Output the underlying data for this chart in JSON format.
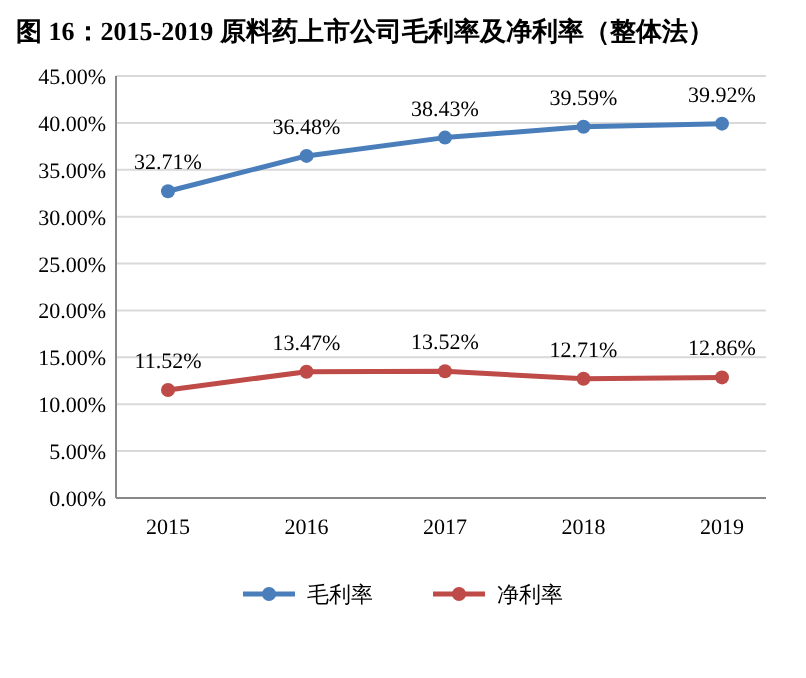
{
  "chart_data": {
    "type": "line",
    "title": "图 16：2015-2019 原料药上市公司毛利率及净利率（整体法）",
    "categories": [
      "2015",
      "2016",
      "2017",
      "2018",
      "2019"
    ],
    "series": [
      {
        "name": "毛利率",
        "color": "#4a7ebb",
        "values": [
          32.71,
          36.48,
          38.43,
          39.59,
          39.92
        ],
        "value_labels": [
          "32.71%",
          "36.48%",
          "38.43%",
          "39.59%",
          "39.92%"
        ]
      },
      {
        "name": "净利率",
        "color": "#be4b48",
        "values": [
          11.52,
          13.47,
          13.52,
          12.71,
          12.86
        ],
        "value_labels": [
          "11.52%",
          "13.47%",
          "13.52%",
          "12.71%",
          "12.86%"
        ]
      }
    ],
    "ylim": [
      0,
      45
    ],
    "yticks": [
      {
        "value": 0,
        "label": "0.00%"
      },
      {
        "value": 5,
        "label": "5.00%"
      },
      {
        "value": 10,
        "label": "10.00%"
      },
      {
        "value": 15,
        "label": "15.00%"
      },
      {
        "value": 20,
        "label": "20.00%"
      },
      {
        "value": 25,
        "label": "25.00%"
      },
      {
        "value": 30,
        "label": "30.00%"
      },
      {
        "value": 35,
        "label": "35.00%"
      },
      {
        "value": 40,
        "label": "40.00%"
      },
      {
        "value": 45,
        "label": "45.00%"
      }
    ],
    "grid": "y",
    "legend": "bottom",
    "marker": "circle",
    "line_style": "solid"
  }
}
